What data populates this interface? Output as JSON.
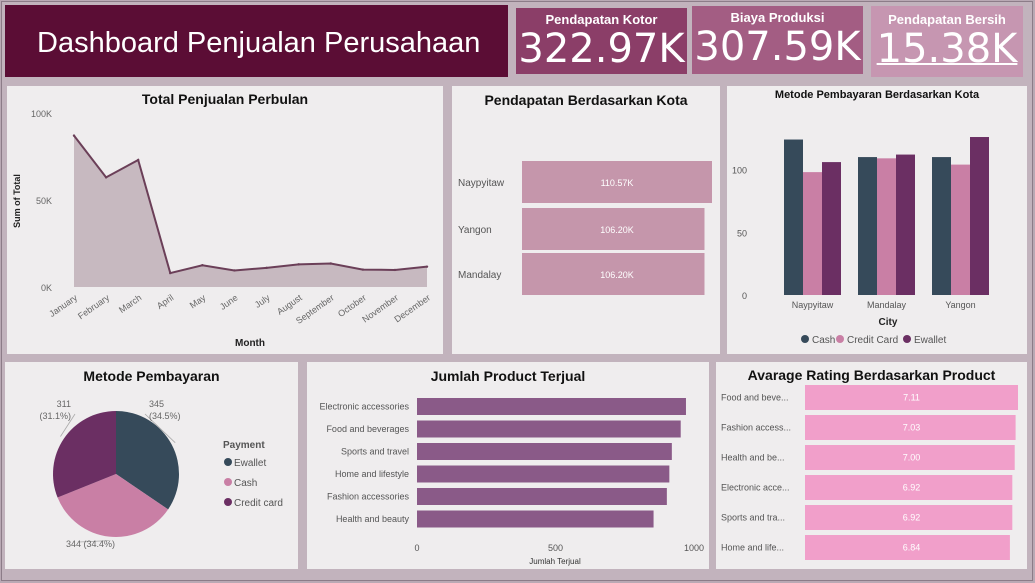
{
  "header": {
    "title": "Dashboard Penjualan Perusahaan"
  },
  "kpis": [
    {
      "label": "Pendapatan Kotor",
      "value": "322.97K"
    },
    {
      "label": "Biaya Produksi",
      "value": "307.59K"
    },
    {
      "label": "Pendapatan Bersih",
      "value": "15.38K"
    }
  ],
  "colors": {
    "title_bg": "#5b0d35",
    "kpi1": "#8b3e68",
    "kpi2": "#a35d83",
    "kpi3": "#c696b1",
    "line_fill": "#c7b9c0",
    "line": "#6b3f58",
    "city_bar": "#c596ab",
    "cash": "#364a5a",
    "credit": "#c97fa5",
    "ewallet": "#6b2f63",
    "product_bar": "#8a5a88",
    "rating_bar": "#f19fca"
  },
  "chart_data": [
    {
      "type": "area",
      "title": "Total Penjualan Perbulan",
      "xlabel": "Month",
      "ylabel": "Sum of Total",
      "categories": [
        "January",
        "February",
        "March",
        "April",
        "May",
        "June",
        "July",
        "August",
        "September",
        "October",
        "November",
        "December"
      ],
      "values": [
        87000,
        63000,
        73000,
        8000,
        12500,
        9500,
        11000,
        13000,
        13500,
        10000,
        9800,
        11700
      ],
      "ylim": [
        0,
        100000
      ],
      "yticks": [
        "0K",
        "50K",
        "100K"
      ],
      "grid": false
    },
    {
      "type": "bar",
      "title": "Pendapatan Berdasarkan Kota",
      "orientation": "horizontal",
      "categories": [
        "Naypyitaw",
        "Yangon",
        "Mandalay"
      ],
      "values": [
        110.57,
        106.2,
        106.2
      ],
      "labels": [
        "110.57K",
        "106.20K",
        "106.20K"
      ]
    },
    {
      "type": "bar",
      "title": "Metode Pembayaran Berdasarkan Kota",
      "xlabel": "City",
      "categories": [
        "Naypyitaw",
        "Mandalay",
        "Yangon"
      ],
      "series": [
        {
          "name": "Cash",
          "values": [
            124,
            110,
            110
          ]
        },
        {
          "name": "Credit Card",
          "values": [
            98,
            109,
            104
          ]
        },
        {
          "name": "Ewallet",
          "values": [
            106,
            112,
            126
          ]
        }
      ],
      "ylim": [
        0,
        130
      ],
      "yticks": [
        0,
        50,
        100
      ],
      "legend": "bottom"
    },
    {
      "type": "pie",
      "title": "Metode Pembayaran",
      "legend_title": "Payment",
      "slices": [
        {
          "name": "Ewallet",
          "value": 345,
          "label": "345 (34.5%)"
        },
        {
          "name": "Cash",
          "value": 344,
          "label": "344 (34.4%)"
        },
        {
          "name": "Credit card",
          "value": 311,
          "label": "311 (31.1%)"
        }
      ],
      "legend": "right"
    },
    {
      "type": "bar",
      "title": "Jumlah Product Terjual",
      "orientation": "horizontal",
      "xlabel": "Jumlah Terjual",
      "categories": [
        "Electronic accessories",
        "Food and beverages",
        "Sports and travel",
        "Home and lifestyle",
        "Fashion accessories",
        "Health and beauty"
      ],
      "values": [
        971,
        952,
        920,
        911,
        902,
        854
      ],
      "xlim": [
        0,
        1000
      ],
      "xticks": [
        0,
        500,
        1000
      ]
    },
    {
      "type": "bar",
      "title": "Avarage Rating Berdasarkan Product",
      "orientation": "horizontal",
      "categories": [
        "Food and beve...",
        "Fashion access...",
        "Health and be...",
        "Electronic acce...",
        "Sports and tra...",
        "Home and life..."
      ],
      "values": [
        7.11,
        7.03,
        7.0,
        6.92,
        6.92,
        6.84
      ],
      "labels": [
        "7.11",
        "7.03",
        "7.00",
        "6.92",
        "6.92",
        "6.84"
      ]
    }
  ]
}
